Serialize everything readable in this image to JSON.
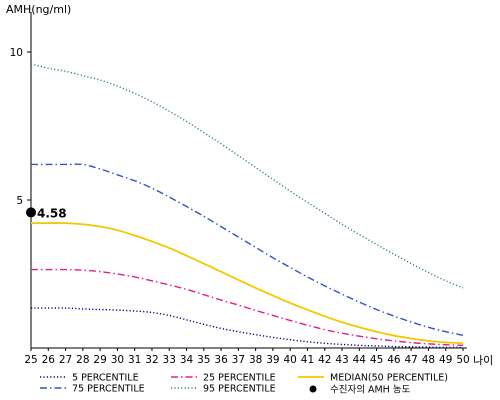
{
  "chart_data": {
    "type": "line",
    "y_axis_title": "AMH(ng/ml)",
    "x_axis_unit": "나이",
    "x": [
      25,
      26,
      27,
      28,
      29,
      30,
      31,
      32,
      33,
      34,
      35,
      36,
      37,
      38,
      39,
      40,
      41,
      42,
      43,
      44,
      45,
      46,
      47,
      48,
      49,
      50
    ],
    "xlim": [
      25,
      50
    ],
    "ylim": [
      0,
      11
    ],
    "y_ticks": [
      5,
      10
    ],
    "grid": false,
    "legend_position": "bottom",
    "series": [
      {
        "name": "5 PERCENTILE",
        "color": "#000080",
        "style": "dotted",
        "values": [
          1.35,
          1.35,
          1.35,
          1.32,
          1.3,
          1.28,
          1.25,
          1.2,
          1.1,
          0.95,
          0.8,
          0.66,
          0.55,
          0.45,
          0.36,
          0.28,
          0.21,
          0.16,
          0.12,
          0.09,
          0.07,
          0.05,
          0.04,
          0.03,
          0.02,
          0.02
        ]
      },
      {
        "name": "25 PERCENTILE",
        "color": "#e0208c",
        "style": "dash-dot",
        "values": [
          2.65,
          2.65,
          2.65,
          2.63,
          2.58,
          2.5,
          2.4,
          2.27,
          2.13,
          1.98,
          1.8,
          1.62,
          1.45,
          1.27,
          1.1,
          0.93,
          0.77,
          0.62,
          0.5,
          0.4,
          0.31,
          0.24,
          0.18,
          0.14,
          0.11,
          0.09
        ]
      },
      {
        "name": "MEDIAN(50 PERCENTILE)",
        "color": "#f2c800",
        "style": "solid",
        "values": [
          4.22,
          4.22,
          4.22,
          4.18,
          4.1,
          3.98,
          3.8,
          3.6,
          3.38,
          3.12,
          2.85,
          2.58,
          2.3,
          2.03,
          1.77,
          1.52,
          1.29,
          1.07,
          0.87,
          0.7,
          0.55,
          0.42,
          0.32,
          0.24,
          0.19,
          0.16
        ]
      },
      {
        "name": "75 PERCENTILE",
        "color": "#3355bb",
        "style": "dash-dot",
        "values": [
          6.2,
          6.2,
          6.2,
          6.2,
          6.05,
          5.85,
          5.65,
          5.4,
          5.1,
          4.78,
          4.45,
          4.1,
          3.75,
          3.4,
          3.05,
          2.72,
          2.4,
          2.1,
          1.82,
          1.55,
          1.3,
          1.08,
          0.88,
          0.7,
          0.55,
          0.43
        ]
      },
      {
        "name": "95 PERCENTILE",
        "color": "#2e8b57",
        "style": "dotted",
        "values": [
          9.6,
          9.45,
          9.35,
          9.2,
          9.05,
          8.85,
          8.6,
          8.32,
          8.0,
          7.65,
          7.28,
          6.9,
          6.5,
          6.1,
          5.7,
          5.3,
          4.92,
          4.55,
          4.18,
          3.83,
          3.5,
          3.17,
          2.85,
          2.55,
          2.27,
          2.03
        ]
      }
    ],
    "marker": {
      "name": "수진자의 AMH 농도",
      "x": 25,
      "y": 4.58,
      "label": "4.58",
      "color": "#000000"
    }
  }
}
